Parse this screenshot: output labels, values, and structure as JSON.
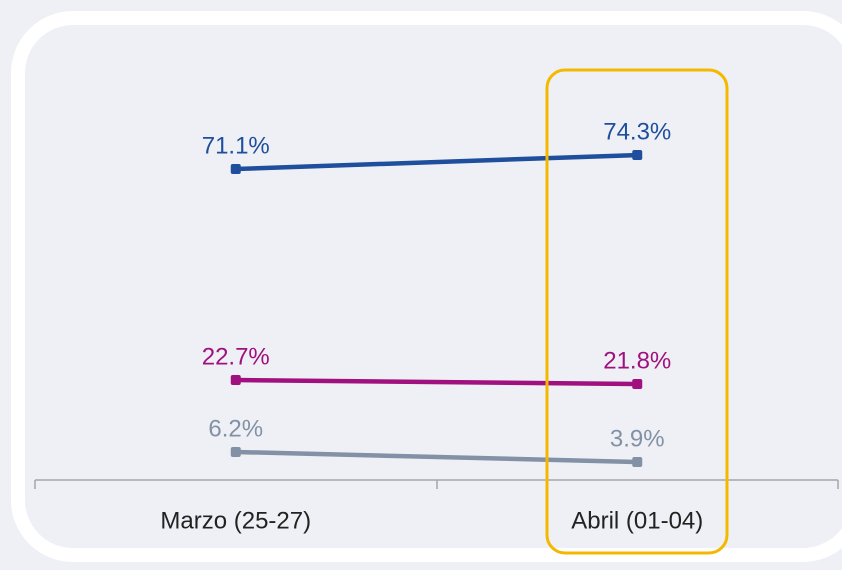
{
  "chart_data": {
    "type": "line",
    "categories": [
      "Marzo (25-27)",
      "Abril (01-04)"
    ],
    "series": [
      {
        "color": "#1f4e9c",
        "values": [
          71.1,
          74.3
        ],
        "value_labels": [
          "71.1%",
          "74.3%"
        ]
      },
      {
        "color": "#a0107e",
        "values": [
          22.7,
          21.8
        ],
        "value_labels": [
          "22.7%",
          "21.8%"
        ]
      },
      {
        "color": "#8391a6",
        "values": [
          6.2,
          3.9
        ],
        "value_labels": [
          "6.2%",
          "3.9%"
        ]
      }
    ],
    "ylim": [
      0,
      100
    ]
  }
}
